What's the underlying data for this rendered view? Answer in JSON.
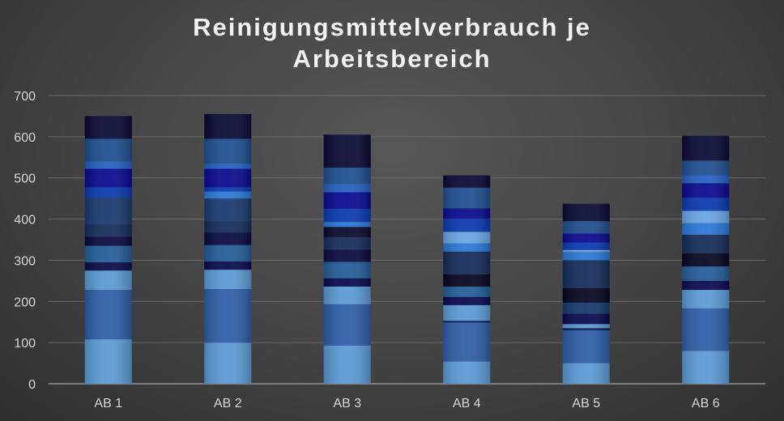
{
  "chart_data": {
    "type": "bar",
    "stacked": true,
    "title": "Reinigungsmittelverbrauch je Arbeitsbereich",
    "title_lines": [
      "Reinigungsmittelverbrauch je",
      "Arbeitsbereich"
    ],
    "xlabel": "",
    "ylabel": "",
    "ylim": [
      0,
      700
    ],
    "yticks": [
      0,
      100,
      200,
      300,
      400,
      500,
      600,
      700
    ],
    "grid": true,
    "legend": "none",
    "categories": [
      "AB 1",
      "AB 2",
      "AB 3",
      "AB 4",
      "AB 5",
      "AB 6"
    ],
    "series": [
      {
        "color": "#5b9bd5",
        "values": [
          108,
          100,
          93,
          54,
          50,
          80
        ]
      },
      {
        "color": "#2e5ea8",
        "values": [
          120,
          130,
          100,
          95,
          80,
          103
        ]
      },
      {
        "color": "#0a1a55",
        "values": [
          0,
          0,
          0,
          4,
          5,
          0
        ]
      },
      {
        "color": "#5b9bd5",
        "values": [
          47,
          47,
          43,
          38,
          10,
          45
        ]
      },
      {
        "color": "#0a0a50",
        "values": [
          0,
          0,
          20,
          20,
          25,
          22
        ]
      },
      {
        "color": "#173a6e",
        "values": [
          0,
          0,
          0,
          0,
          27,
          0
        ]
      },
      {
        "color": "#0a0a4a",
        "values": [
          20,
          20,
          0,
          0,
          0,
          0
        ]
      },
      {
        "color": "#245d99",
        "values": [
          40,
          40,
          40,
          25,
          0,
          35
        ]
      },
      {
        "color": "#050520",
        "values": [
          0,
          0,
          0,
          30,
          35,
          32
        ]
      },
      {
        "color": "#0a0a40",
        "values": [
          22,
          30,
          30,
          0,
          0,
          0
        ]
      },
      {
        "color": "#152d5a",
        "values": [
          30,
          28,
          30,
          55,
          68,
          45
        ]
      },
      {
        "color": "#0a0a30",
        "values": [
          0,
          0,
          25,
          0,
          0,
          0
        ]
      },
      {
        "color": "#1b3a70",
        "values": [
          65,
          55,
          0,
          0,
          0,
          0
        ]
      },
      {
        "color": "#2a78d8",
        "values": [
          0,
          17,
          12,
          20,
          20,
          28
        ]
      },
      {
        "color": "#6aa6e6",
        "values": [
          0,
          0,
          0,
          28,
          5,
          30
        ]
      },
      {
        "color": "#0a3ab0",
        "values": [
          25,
          10,
          32,
          32,
          18,
          32
        ]
      },
      {
        "color": "#0a0a90",
        "values": [
          45,
          45,
          40,
          25,
          22,
          35
        ]
      },
      {
        "color": "#2460c0",
        "values": [
          18,
          13,
          20,
          0,
          0,
          20
        ]
      },
      {
        "color": "#1f4f8f",
        "values": [
          55,
          60,
          40,
          50,
          30,
          35
        ]
      },
      {
        "color": "#0a0a35",
        "values": [
          55,
          60,
          80,
          30,
          42,
          60
        ]
      }
    ]
  }
}
